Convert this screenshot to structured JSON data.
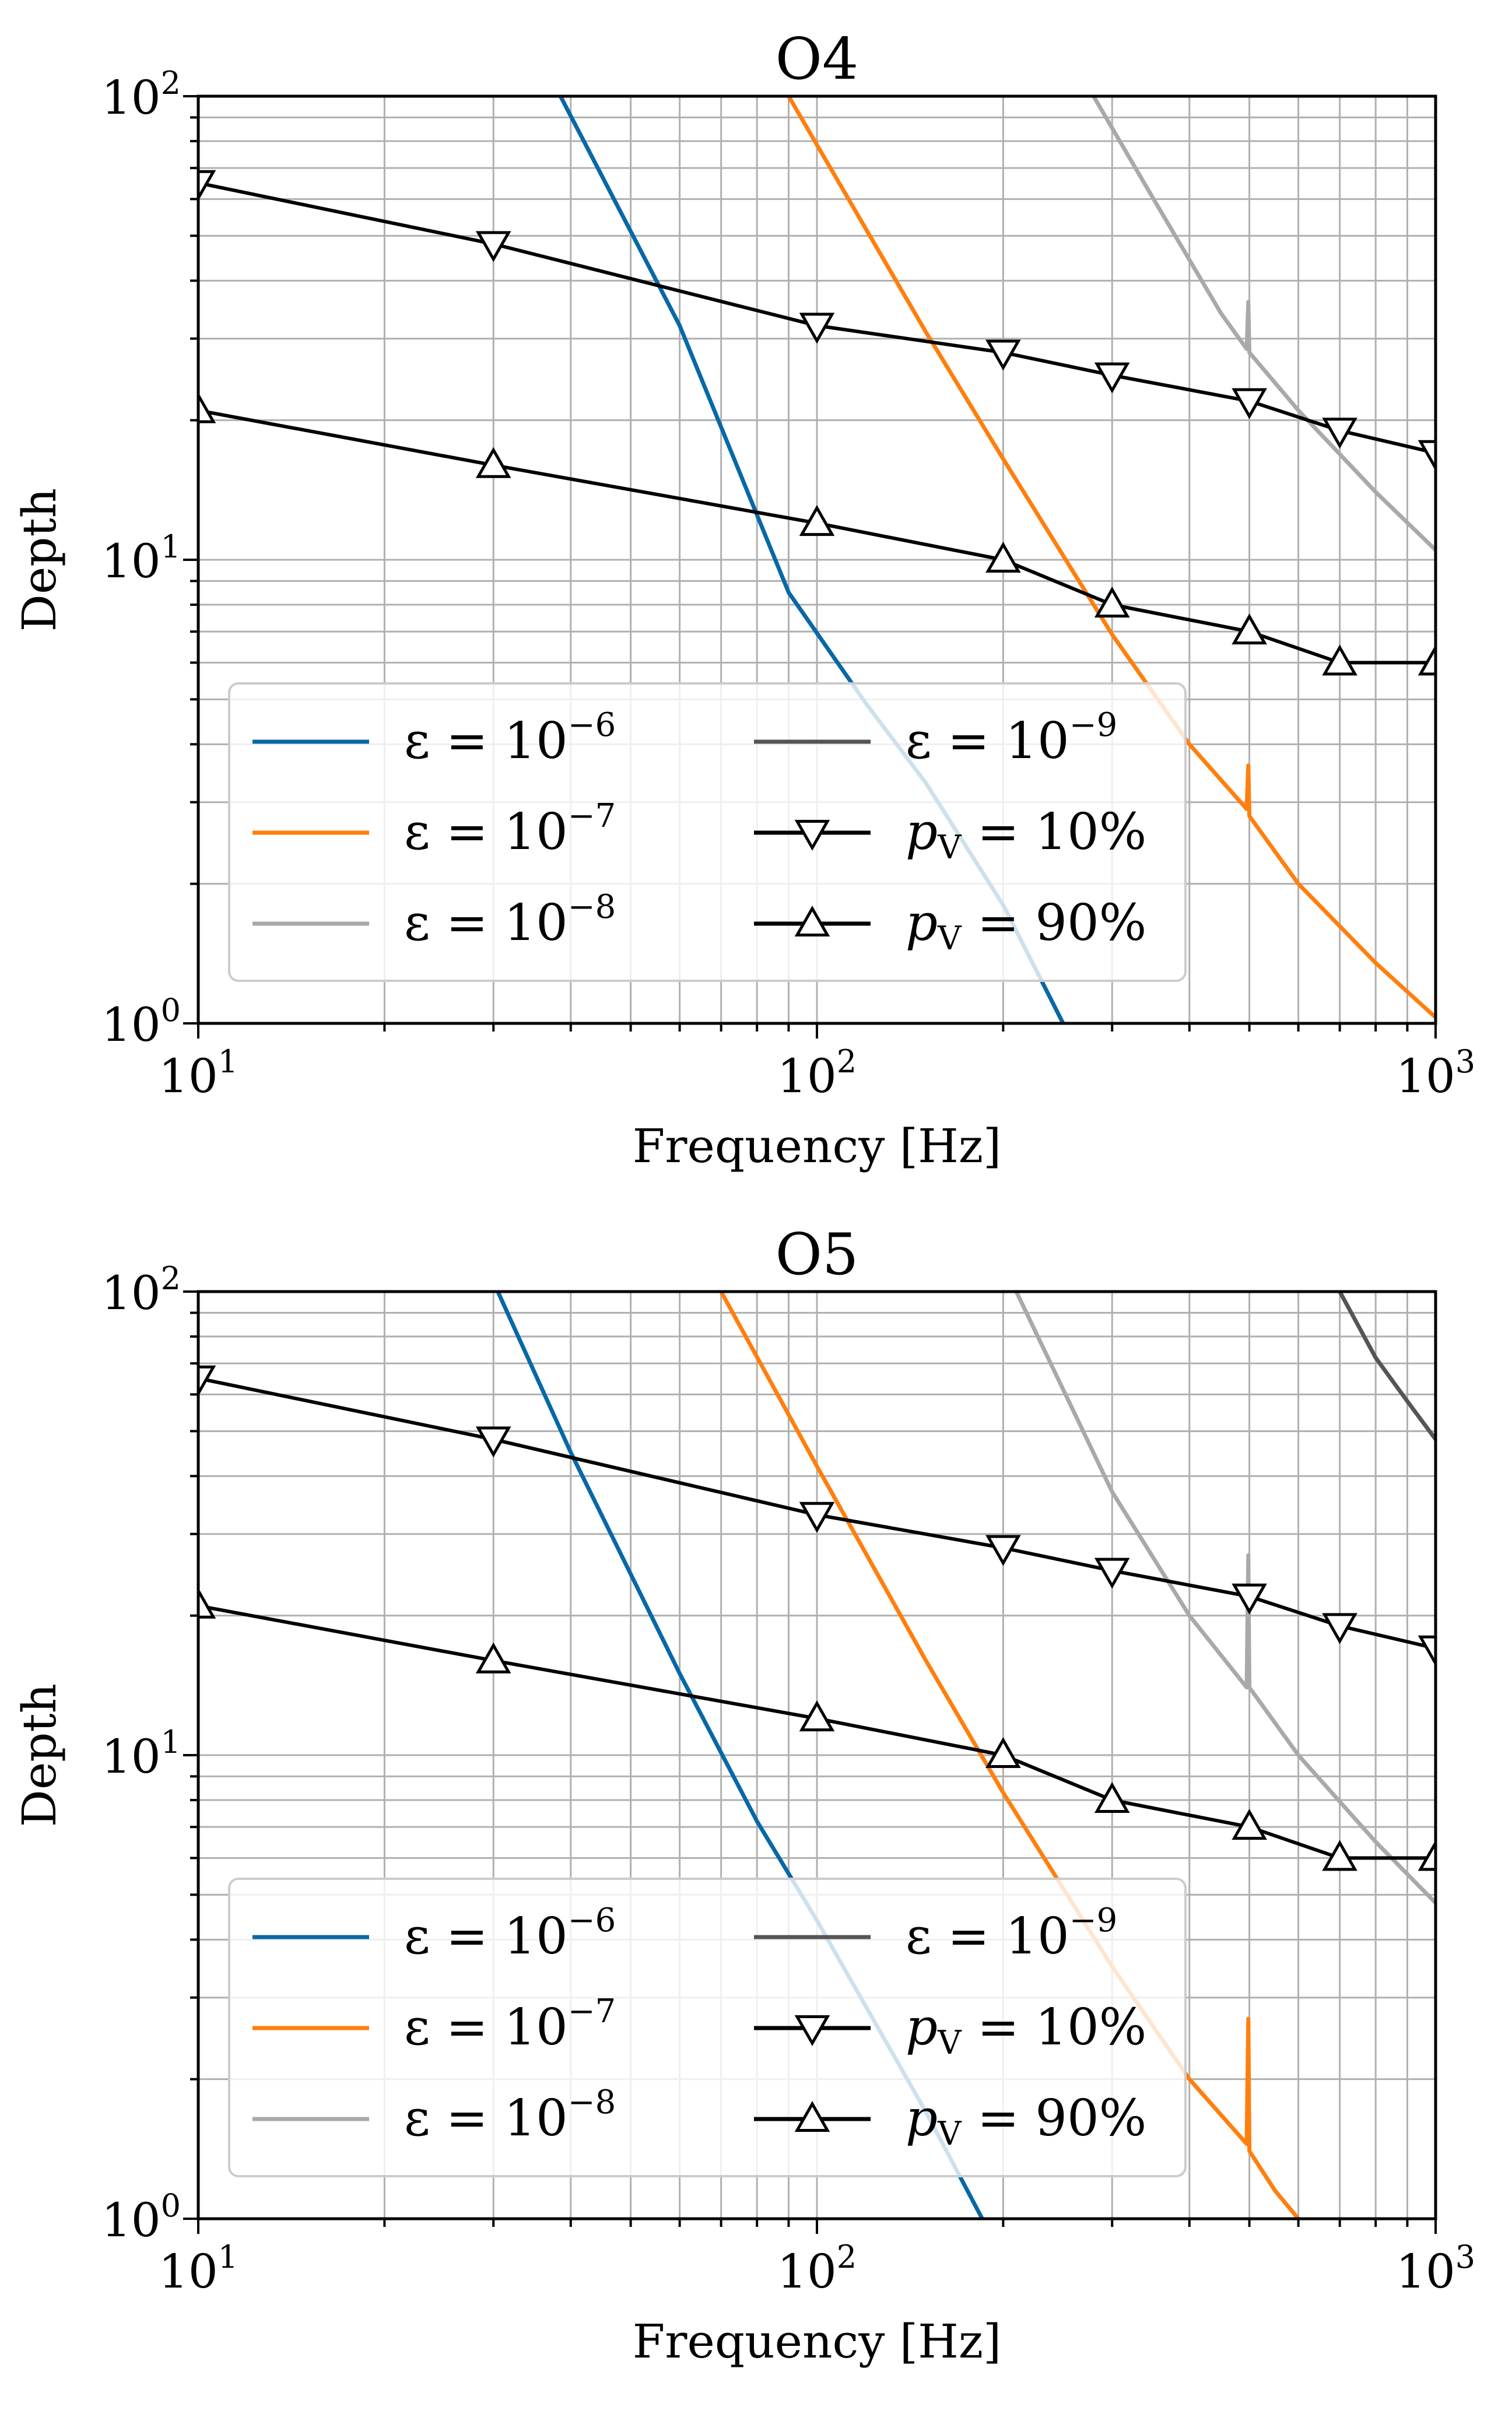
{
  "chart_data": [
    {
      "type": "line",
      "title": "O4",
      "xlabel": "Frequency [Hz]",
      "ylabel": "Depth",
      "xscale": "log",
      "yscale": "log",
      "xlim": [
        10,
        1000
      ],
      "ylim": [
        1,
        100
      ],
      "grid": true,
      "legend_position": "lower-left",
      "x_tick_labels": [
        {
          "base": "10",
          "exp": "1"
        },
        {
          "base": "10",
          "exp": "2"
        },
        {
          "base": "10",
          "exp": "3"
        }
      ],
      "y_tick_labels": [
        {
          "base": "10",
          "exp": "0"
        },
        {
          "base": "10",
          "exp": "1"
        },
        {
          "base": "10",
          "exp": "2"
        }
      ],
      "series": [
        {
          "name": "ε = 10^-6",
          "label_main": "ε = 10",
          "label_sup": "−6",
          "color": "#0868a6",
          "marker": "none",
          "x": [
            38.5,
            60,
            90,
            120,
            150,
            200,
            250
          ],
          "y": [
            100,
            32,
            8.5,
            4.9,
            3.3,
            1.8,
            1.0
          ]
        },
        {
          "name": "ε = 10^-7",
          "label_main": "ε = 10",
          "label_sup": "−7",
          "color": "#ff7f0e",
          "marker": "none",
          "x": [
            90,
            150,
            200,
            300,
            400,
            495,
            498,
            500,
            600,
            800,
            1000
          ],
          "y": [
            100,
            31,
            16.5,
            6.9,
            4.0,
            2.9,
            3.6,
            2.8,
            2.0,
            1.35,
            1.03
          ]
        },
        {
          "name": "ε = 10^-8",
          "label_main": "ε = 10",
          "label_sup": "−8",
          "color": "#a9a9a9",
          "marker": "none",
          "x": [
            280,
            350,
            450,
            495,
            498,
            500,
            600,
            800,
            1000
          ],
          "y": [
            100,
            60,
            34,
            28.5,
            36,
            28,
            21,
            14,
            10.5
          ]
        },
        {
          "name": "ε = 10^-9",
          "label_main": "ε = 10",
          "label_sup": "−9",
          "color": "#555555",
          "marker": "none",
          "x": [],
          "y": []
        },
        {
          "name": "p_V = 10%",
          "label_main": "p",
          "label_sub": "V",
          "label_rest": " = 10%",
          "color": "#000000",
          "marker": "triangle_down",
          "x": [
            10,
            30,
            100,
            200,
            300,
            500,
            700,
            1000
          ],
          "y": [
            65,
            48,
            32,
            28,
            25,
            22,
            19,
            17
          ]
        },
        {
          "name": "p_V = 90%",
          "label_main": "p",
          "label_sub": "V",
          "label_rest": " = 90%",
          "color": "#000000",
          "marker": "triangle_up",
          "x": [
            10,
            30,
            100,
            200,
            300,
            500,
            700,
            1000
          ],
          "y": [
            21,
            16,
            12,
            10,
            8,
            7,
            6,
            6
          ]
        }
      ]
    },
    {
      "type": "line",
      "title": "O5",
      "xlabel": "Frequency [Hz]",
      "ylabel": "Depth",
      "xscale": "log",
      "yscale": "log",
      "xlim": [
        10,
        1000
      ],
      "ylim": [
        1,
        100
      ],
      "grid": true,
      "legend_position": "lower-left",
      "x_tick_labels": [
        {
          "base": "10",
          "exp": "1"
        },
        {
          "base": "10",
          "exp": "2"
        },
        {
          "base": "10",
          "exp": "3"
        }
      ],
      "y_tick_labels": [
        {
          "base": "10",
          "exp": "0"
        },
        {
          "base": "10",
          "exp": "1"
        },
        {
          "base": "10",
          "exp": "2"
        }
      ],
      "series": [
        {
          "name": "ε = 10^-6",
          "label_main": "ε = 10",
          "label_sup": "−6",
          "color": "#0868a6",
          "marker": "none",
          "x": [
            30.5,
            40,
            60,
            80,
            100,
            150,
            185
          ],
          "y": [
            100,
            45,
            15,
            7.2,
            4.4,
            1.7,
            1.0
          ]
        },
        {
          "name": "ε = 10^-7",
          "label_main": "ε = 10",
          "label_sup": "−7",
          "color": "#ff7f0e",
          "marker": "none",
          "x": [
            70,
            100,
            150,
            200,
            300,
            400,
            495,
            498,
            500,
            550,
            600
          ],
          "y": [
            100,
            42,
            16,
            8.3,
            3.5,
            2.0,
            1.45,
            2.7,
            1.4,
            1.15,
            1.0
          ]
        },
        {
          "name": "ε = 10^-8",
          "label_main": "ε = 10",
          "label_sup": "−8",
          "color": "#a9a9a9",
          "marker": "none",
          "x": [
            210,
            300,
            400,
            495,
            498,
            500,
            600,
            800,
            1000
          ],
          "y": [
            100,
            37,
            20,
            14,
            27,
            14,
            10,
            6.5,
            4.8
          ]
        },
        {
          "name": "ε = 10^-9",
          "label_main": "ε = 10",
          "label_sup": "−9",
          "color": "#555555",
          "marker": "none",
          "x": [
            700,
            800,
            900,
            1000
          ],
          "y": [
            100,
            72,
            58,
            48
          ]
        },
        {
          "name": "p_V = 10%",
          "label_main": "p",
          "label_sub": "V",
          "label_rest": " = 10%",
          "color": "#000000",
          "marker": "triangle_down",
          "x": [
            10,
            30,
            100,
            200,
            300,
            500,
            700,
            1000
          ],
          "y": [
            65,
            48,
            33,
            28,
            25,
            22,
            19,
            17
          ]
        },
        {
          "name": "p_V = 90%",
          "label_main": "p",
          "label_sub": "V",
          "label_rest": " = 90%",
          "color": "#000000",
          "marker": "triangle_up",
          "x": [
            10,
            30,
            100,
            200,
            300,
            500,
            700,
            1000
          ],
          "y": [
            21,
            16,
            12,
            10,
            8,
            7,
            6,
            6
          ]
        }
      ]
    }
  ]
}
